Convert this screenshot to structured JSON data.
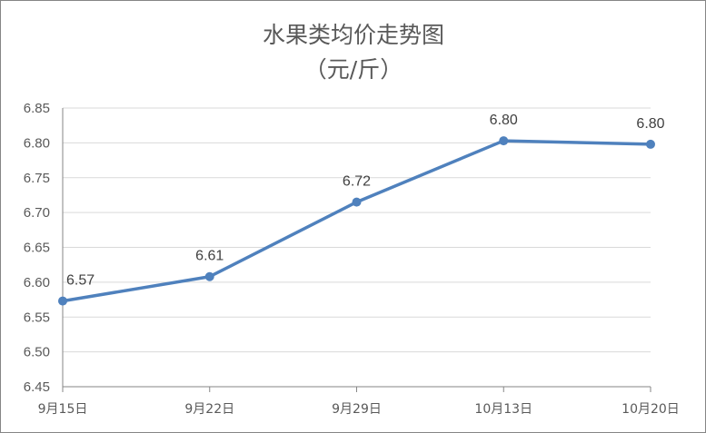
{
  "chart_data": {
    "type": "line",
    "title": "水果类均价走势图",
    "subtitle": "（元/斤）",
    "categories": [
      "9月15日",
      "9月22日",
      "9月29日",
      "10月13日",
      "10月20日"
    ],
    "series": [
      {
        "values": [
          6.573,
          6.608,
          6.715,
          6.803,
          6.798
        ],
        "data_labels": [
          "6.57",
          "6.61",
          "6.72",
          "6.80",
          "6.80"
        ],
        "color": "#4f81bd"
      }
    ],
    "ylim": [
      6.45,
      6.85
    ],
    "yticks": [
      "6.45",
      "6.50",
      "6.55",
      "6.60",
      "6.65",
      "6.70",
      "6.75",
      "6.80",
      "6.85"
    ],
    "grid": true,
    "legend": "none"
  }
}
